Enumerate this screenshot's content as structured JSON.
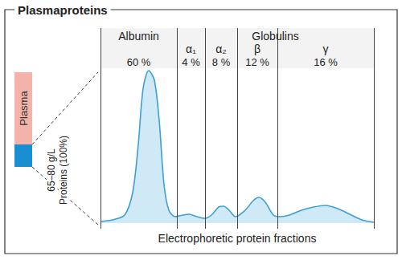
{
  "title": "Plasmaproteins",
  "side_bar": {
    "label": "Plasma",
    "note": [
      "65–80 g/L",
      "Proteins (100%)"
    ]
  },
  "chart_data": {
    "type": "area",
    "x": [
      0,
      15,
      30,
      40,
      47,
      53,
      60,
      67,
      73,
      79,
      85,
      93,
      103,
      110,
      120,
      130,
      138,
      147,
      153,
      160,
      168,
      180,
      190,
      197,
      205,
      215,
      223,
      235,
      250,
      265,
      280,
      295,
      310,
      325,
      340
    ],
    "values": [
      2,
      4,
      10,
      38,
      98,
      168,
      190,
      178,
      128,
      48,
      16,
      8,
      10,
      11,
      8,
      6,
      10,
      20,
      21,
      16,
      8,
      16,
      28,
      32,
      26,
      10,
      8,
      10,
      16,
      20,
      22,
      18,
      11,
      4,
      1
    ],
    "xlim": [
      0,
      340
    ],
    "ylim": [
      0,
      200
    ],
    "tick_labels": false,
    "grid": false,
    "color": "#3d9fd3",
    "xlabel": "Electrophoretic protein fractions",
    "fractions": [
      {
        "name": "Albumin",
        "label": "60 %",
        "from": 0,
        "to": 95
      },
      {
        "name": "α₁",
        "label": "4 %",
        "from": 95,
        "to": 130
      },
      {
        "name": "α₂",
        "label": "8 %",
        "from": 130,
        "to": 170
      },
      {
        "name": "β",
        "label": "12 %",
        "from": 170,
        "to": 220
      },
      {
        "name": "γ",
        "label": "16 %",
        "from": 220,
        "to": 340
      }
    ],
    "groups": [
      {
        "name": "Globulins",
        "from": 95,
        "to": 340
      }
    ]
  }
}
